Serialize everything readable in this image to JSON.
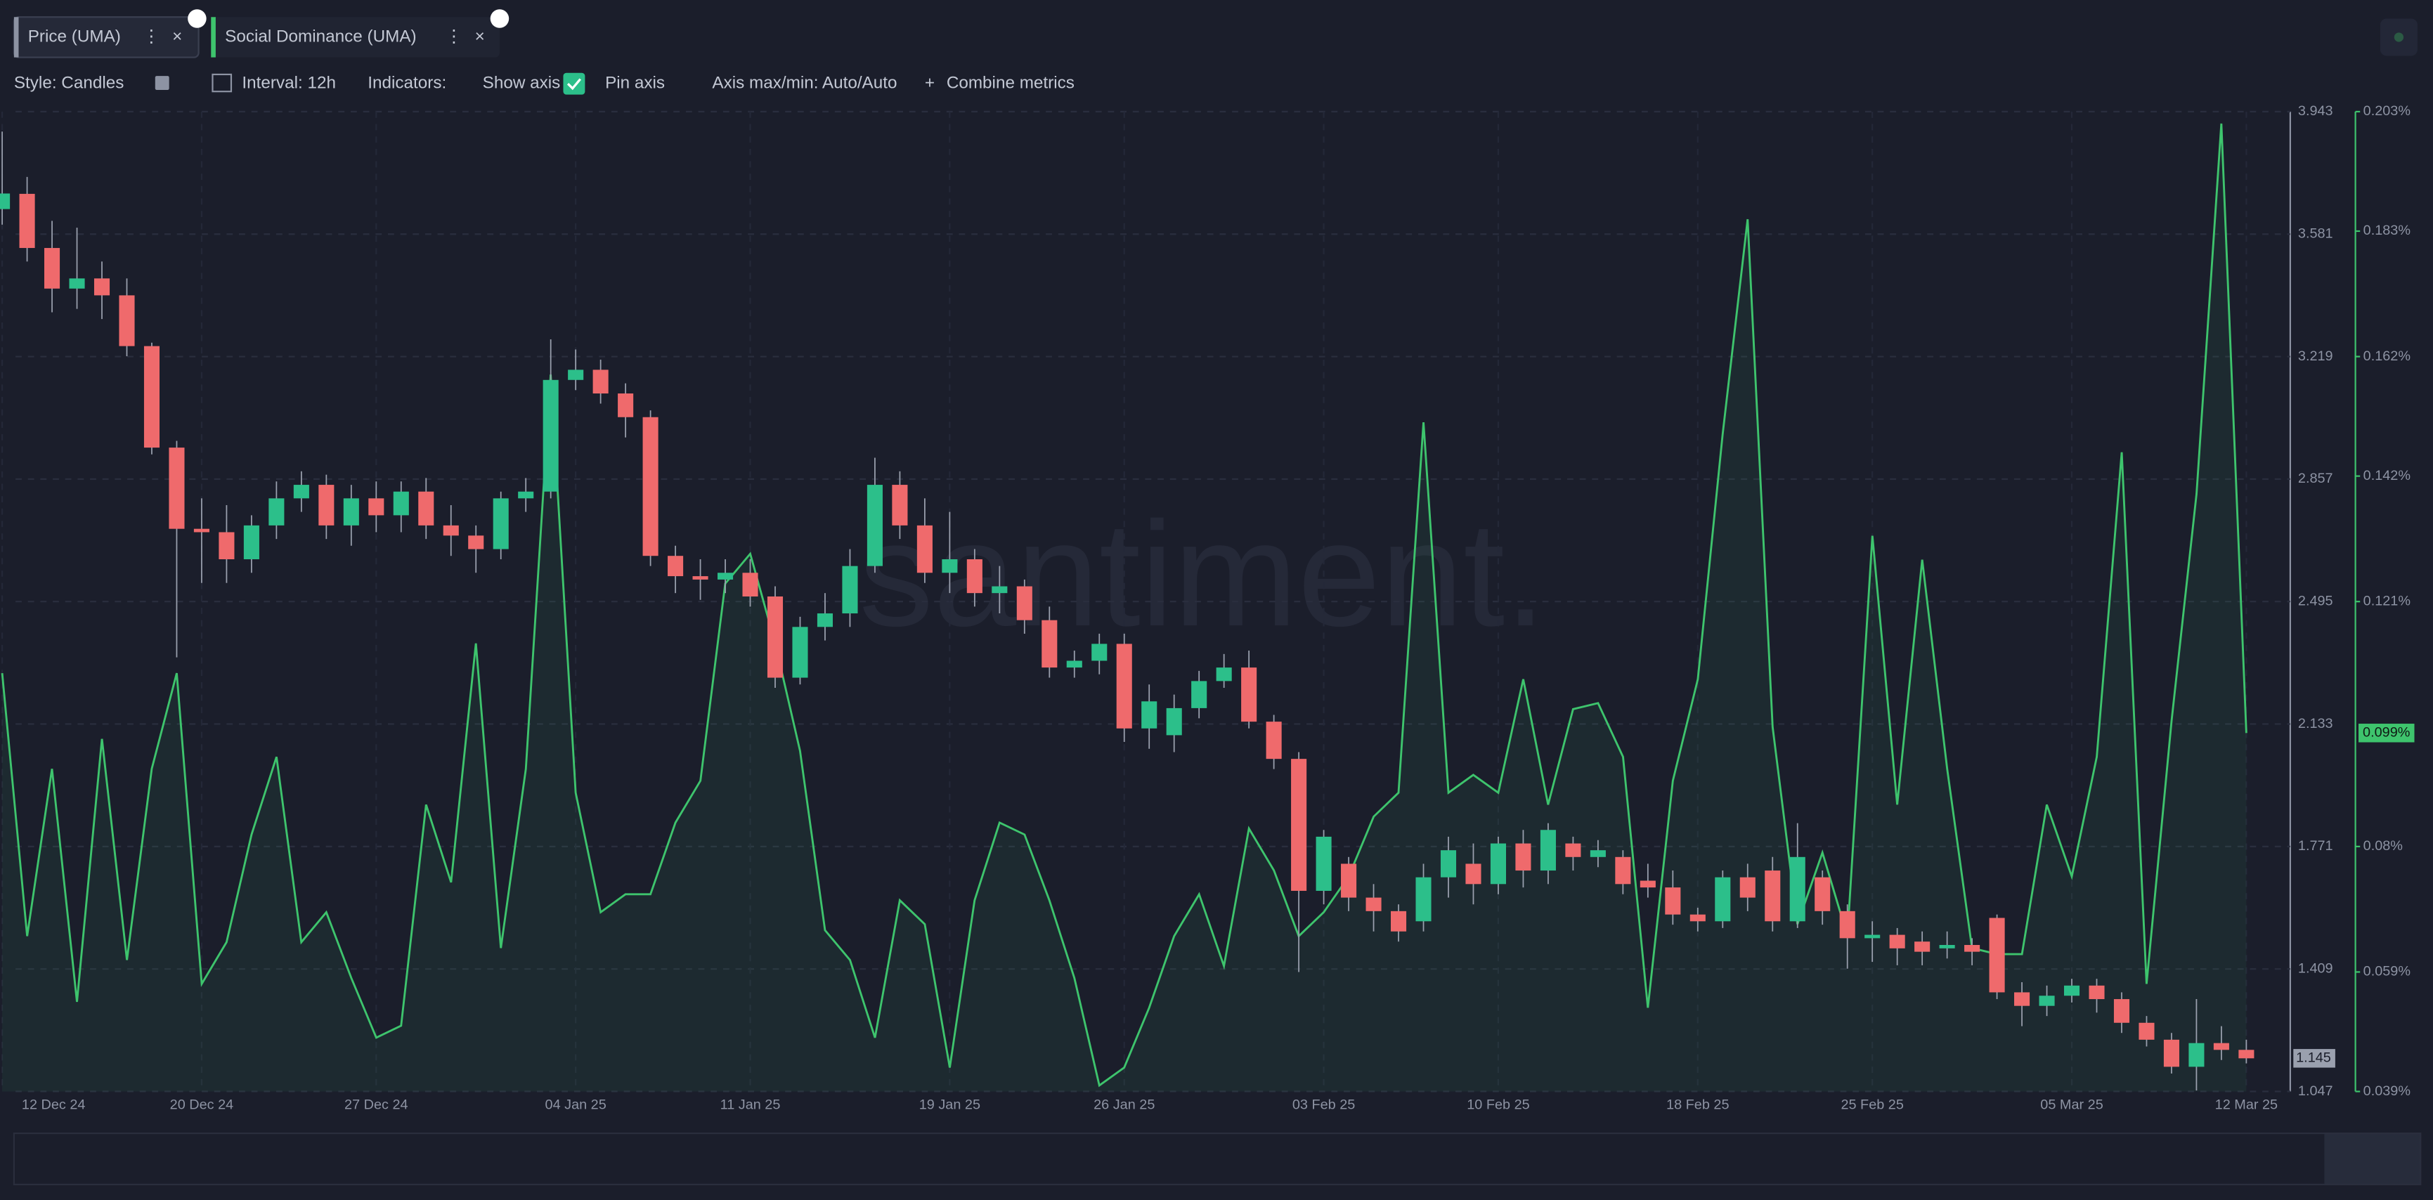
{
  "toolbar": {
    "style": "Style: Candles",
    "interval": "Interval: 12h",
    "indicators": "Indicators:",
    "show_axis": "Show axis",
    "pin_axis": "Pin axis",
    "axis_range": "Axis max/min: Auto/Auto",
    "combine": "Combine metrics"
  },
  "watermark": "santiment.",
  "chart_data": {
    "type": "candlestick",
    "categories": [
      "12 Dec 24",
      null,
      null,
      null,
      null,
      null,
      null,
      null,
      "20 Dec 24",
      null,
      null,
      null,
      null,
      null,
      null,
      "27 Dec 24",
      null,
      null,
      null,
      null,
      null,
      null,
      null,
      "04 Jan 25",
      null,
      null,
      null,
      null,
      null,
      null,
      "11 Jan 25",
      null,
      null,
      null,
      null,
      null,
      null,
      null,
      "19 Jan 25",
      null,
      null,
      null,
      null,
      null,
      null,
      "26 Jan 25",
      null,
      null,
      null,
      null,
      null,
      null,
      null,
      "03 Feb 25",
      null,
      null,
      null,
      null,
      null,
      null,
      "10 Feb 25",
      null,
      null,
      null,
      null,
      null,
      null,
      null,
      "18 Feb 25",
      null,
      null,
      null,
      null,
      null,
      null,
      "25 Feb 25",
      null,
      null,
      null,
      null,
      null,
      null,
      null,
      "05 Mar 25",
      null,
      null,
      null,
      null,
      null,
      null,
      "12 Mar 25"
    ],
    "series": [
      {
        "name": "Price (UMA)",
        "type": "candlestick",
        "axis": "y",
        "up_color": "#2cbf8a",
        "down_color": "#ef6a6c",
        "open": [
          3.655,
          3.7,
          3.54,
          3.42,
          3.45,
          3.4,
          3.25,
          2.95,
          2.71,
          2.7,
          2.62,
          2.72,
          2.8,
          2.84,
          2.72,
          2.8,
          2.75,
          2.82,
          2.72,
          2.69,
          2.65,
          2.8,
          2.82,
          3.15,
          3.18,
          3.11,
          3.04,
          2.63,
          2.57,
          2.56,
          2.58,
          2.51,
          2.27,
          2.42,
          2.46,
          2.6,
          2.84,
          2.72,
          2.58,
          2.62,
          2.52,
          2.54,
          2.44,
          2.3,
          2.32,
          2.37,
          2.12,
          2.1,
          2.18,
          2.26,
          2.3,
          2.14,
          2.03,
          1.64,
          1.72,
          1.62,
          1.58,
          1.55,
          1.68,
          1.72,
          1.66,
          1.78,
          1.7,
          1.78,
          1.74,
          1.74,
          1.67,
          1.65,
          1.57,
          1.55,
          1.68,
          1.7,
          1.55,
          1.68,
          1.58,
          1.5,
          1.51,
          1.49,
          1.47,
          1.48,
          1.56,
          1.34,
          1.3,
          1.33,
          1.36,
          1.32,
          1.25,
          1.2,
          1.12,
          1.19,
          1.17
        ],
        "high": [
          3.884,
          3.75,
          3.62,
          3.6,
          3.5,
          3.45,
          3.26,
          2.97,
          2.8,
          2.78,
          2.75,
          2.85,
          2.88,
          2.87,
          2.84,
          2.85,
          2.85,
          2.86,
          2.78,
          2.72,
          2.82,
          2.86,
          3.27,
          3.24,
          3.21,
          3.14,
          3.06,
          2.66,
          2.62,
          2.62,
          2.62,
          2.54,
          2.45,
          2.52,
          2.65,
          2.92,
          2.88,
          2.8,
          2.76,
          2.65,
          2.6,
          2.56,
          2.48,
          2.35,
          2.4,
          2.4,
          2.25,
          2.22,
          2.29,
          2.34,
          2.35,
          2.16,
          2.05,
          1.82,
          1.74,
          1.66,
          1.6,
          1.72,
          1.8,
          1.78,
          1.8,
          1.82,
          1.84,
          1.8,
          1.79,
          1.76,
          1.72,
          1.7,
          1.59,
          1.7,
          1.72,
          1.74,
          1.84,
          1.7,
          1.6,
          1.55,
          1.53,
          1.52,
          1.52,
          1.5,
          1.57,
          1.37,
          1.36,
          1.38,
          1.38,
          1.34,
          1.27,
          1.22,
          1.32,
          1.24,
          1.2
        ],
        "low": [
          3.609,
          3.5,
          3.35,
          3.36,
          3.33,
          3.22,
          2.93,
          2.33,
          2.55,
          2.55,
          2.58,
          2.68,
          2.76,
          2.68,
          2.66,
          2.7,
          2.7,
          2.68,
          2.63,
          2.58,
          2.62,
          2.76,
          2.8,
          3.12,
          3.08,
          2.98,
          2.6,
          2.52,
          2.5,
          2.52,
          2.48,
          2.24,
          2.25,
          2.38,
          2.42,
          2.58,
          2.68,
          2.55,
          2.52,
          2.48,
          2.46,
          2.4,
          2.27,
          2.27,
          2.28,
          2.08,
          2.06,
          2.05,
          2.15,
          2.24,
          2.12,
          2.0,
          1.4,
          1.6,
          1.58,
          1.52,
          1.49,
          1.52,
          1.62,
          1.6,
          1.63,
          1.65,
          1.66,
          1.7,
          1.71,
          1.63,
          1.62,
          1.54,
          1.52,
          1.53,
          1.58,
          1.52,
          1.53,
          1.54,
          1.41,
          1.43,
          1.42,
          1.42,
          1.44,
          1.42,
          1.32,
          1.24,
          1.27,
          1.31,
          1.28,
          1.22,
          1.18,
          1.1,
          1.05,
          1.14,
          1.13
        ],
        "close": [
          3.701,
          3.54,
          3.42,
          3.45,
          3.4,
          3.25,
          2.95,
          2.71,
          2.7,
          2.62,
          2.72,
          2.8,
          2.84,
          2.72,
          2.8,
          2.75,
          2.82,
          2.72,
          2.69,
          2.65,
          2.8,
          2.82,
          3.15,
          3.18,
          3.11,
          3.04,
          2.63,
          2.57,
          2.56,
          2.58,
          2.51,
          2.27,
          2.42,
          2.46,
          2.6,
          2.84,
          2.72,
          2.58,
          2.62,
          2.52,
          2.54,
          2.44,
          2.3,
          2.32,
          2.37,
          2.12,
          2.2,
          2.18,
          2.26,
          2.3,
          2.14,
          2.03,
          1.64,
          1.8,
          1.62,
          1.58,
          1.52,
          1.68,
          1.76,
          1.66,
          1.78,
          1.7,
          1.82,
          1.74,
          1.76,
          1.66,
          1.65,
          1.57,
          1.55,
          1.68,
          1.62,
          1.55,
          1.74,
          1.58,
          1.5,
          1.51,
          1.47,
          1.46,
          1.48,
          1.46,
          1.34,
          1.3,
          1.33,
          1.36,
          1.32,
          1.25,
          1.2,
          1.12,
          1.19,
          1.17,
          1.145
        ]
      },
      {
        "name": "Social Dominance (UMA)",
        "type": "area",
        "axis": "y2",
        "color": "#3ec46d",
        "last_label": "0.099%",
        "values": [
          0.109,
          0.065,
          0.093,
          0.054,
          0.098,
          0.061,
          0.093,
          0.109,
          0.057,
          0.064,
          0.082,
          0.095,
          0.064,
          0.069,
          0.058,
          0.048,
          0.05,
          0.087,
          0.074,
          0.114,
          0.063,
          0.093,
          0.159,
          0.089,
          0.069,
          0.072,
          0.072,
          0.084,
          0.091,
          0.124,
          0.129,
          0.114,
          0.096,
          0.066,
          0.061,
          0.048,
          0.071,
          0.067,
          0.043,
          0.071,
          0.084,
          0.082,
          0.071,
          0.058,
          0.04,
          0.043,
          0.053,
          0.065,
          0.072,
          0.06,
          0.083,
          0.076,
          0.065,
          0.069,
          0.075,
          0.085,
          0.089,
          0.151,
          0.089,
          0.092,
          0.089,
          0.108,
          0.087,
          0.103,
          0.104,
          0.095,
          0.053,
          0.091,
          0.108,
          0.149,
          0.185,
          0.1,
          0.067,
          0.079,
          0.065,
          0.132,
          0.087,
          0.128,
          0.093,
          0.063,
          0.062,
          0.062,
          0.087,
          0.075,
          0.095,
          0.146,
          0.057,
          0.101,
          0.139,
          0.201,
          0.099
        ]
      }
    ],
    "ylim": [
      1.047,
      3.943
    ],
    "yticks": [
      3.943,
      3.581,
      3.219,
      2.857,
      2.495,
      2.133,
      1.771,
      1.409,
      1.047
    ],
    "y2lim": [
      0.039,
      0.203
    ],
    "y2ticks": [
      {
        "value": 0.203,
        "label": "0.203%"
      },
      {
        "value": 0.183,
        "label": "0.183%"
      },
      {
        "value": 0.162,
        "label": "0.162%"
      },
      {
        "value": 0.142,
        "label": "0.142%"
      },
      {
        "value": 0.121,
        "label": "0.121%"
      },
      {
        "value": 0.08,
        "label": "0.08%"
      },
      {
        "value": 0.059,
        "label": "0.059%"
      },
      {
        "value": 0.039,
        "label": "0.039%"
      }
    ],
    "grid": true
  }
}
